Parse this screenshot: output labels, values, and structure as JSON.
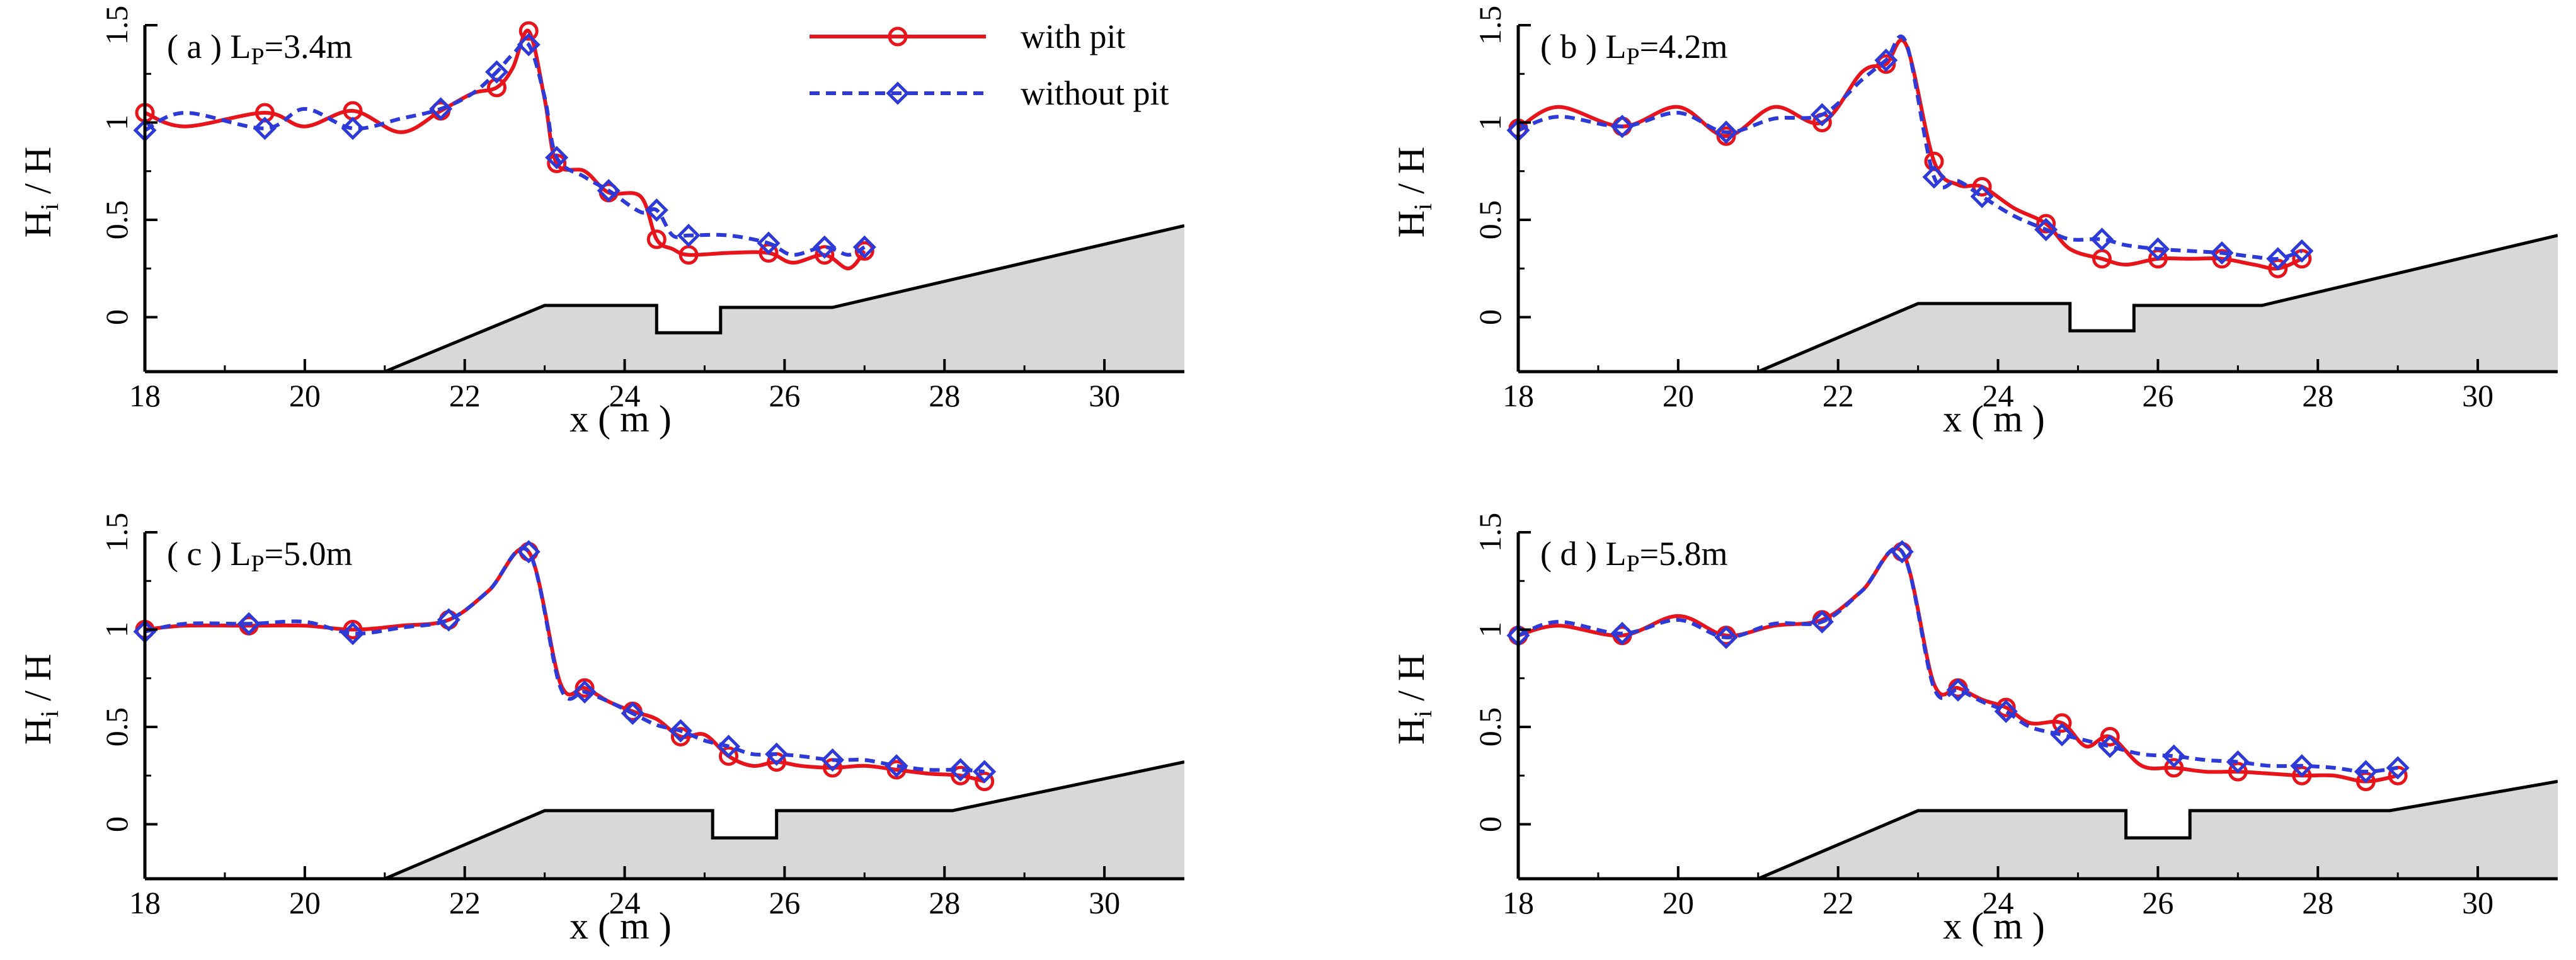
{
  "colors": {
    "with_pit": "#e8141b",
    "without_pit": "#2d3ad8",
    "seabed_fill": "#d8d8d8",
    "axis": "#000000"
  },
  "legend": [
    {
      "key": "with_pit",
      "label": "with pit",
      "style": "solid-circle"
    },
    {
      "key": "without_pit",
      "label": "without pit",
      "style": "dashed-diamond"
    }
  ],
  "shared": {
    "xlabel": "x ( m )",
    "ylabel_main": "H",
    "ylabel_sub": "i",
    "ylabel_tail": " / H",
    "xticks": [
      "18",
      "20",
      "22",
      "24",
      "26",
      "28",
      "30"
    ],
    "yticks": [
      "0",
      "0.5",
      "1",
      "1.5"
    ]
  },
  "chart_data": [
    {
      "type": "line",
      "panel": "(a)",
      "label_prefix": "( a ) L",
      "label_sub": "P",
      "label_value": "=3.4m",
      "xlim": [
        18,
        31
      ],
      "ylim": [
        -0.28,
        1.5
      ],
      "bathymetry": [
        [
          21,
          -0.28
        ],
        [
          23,
          0.06
        ],
        [
          24.4,
          0.06
        ],
        [
          24.4,
          -0.08
        ],
        [
          25.2,
          -0.08
        ],
        [
          25.2,
          0.05
        ],
        [
          26.6,
          0.05
        ],
        [
          31,
          0.47
        ]
      ],
      "series": [
        {
          "name": "with pit",
          "x": [
            18,
            18.5,
            19.5,
            20,
            20.6,
            21.2,
            21.7,
            22.1,
            22.4,
            22.6,
            22.8,
            23,
            23.15,
            23.5,
            23.8,
            24.2,
            24.4,
            24.6,
            24.8,
            25.3,
            25.8,
            26.1,
            26.5,
            26.8,
            27.0
          ],
          "y": [
            1.05,
            0.98,
            1.05,
            0.98,
            1.06,
            0.95,
            1.06,
            1.15,
            1.18,
            1.28,
            1.47,
            1.12,
            0.79,
            0.75,
            0.64,
            0.62,
            0.4,
            0.35,
            0.32,
            0.33,
            0.33,
            0.28,
            0.32,
            0.25,
            0.34
          ]
        },
        {
          "name": "without pit",
          "x": [
            18,
            18.5,
            19.5,
            20,
            20.6,
            21.2,
            21.7,
            22.1,
            22.4,
            22.6,
            22.8,
            23,
            23.15,
            23.5,
            23.8,
            24.2,
            24.4,
            24.6,
            24.8,
            25.3,
            25.8,
            26.1,
            26.5,
            26.8,
            27.0
          ],
          "y": [
            0.96,
            1.05,
            0.97,
            1.07,
            0.97,
            1.02,
            1.07,
            1.15,
            1.26,
            1.35,
            1.4,
            1.13,
            0.82,
            0.72,
            0.65,
            0.54,
            0.55,
            0.42,
            0.42,
            0.42,
            0.38,
            0.32,
            0.36,
            0.32,
            0.36
          ]
        }
      ]
    },
    {
      "type": "line",
      "panel": "(b)",
      "label_prefix": "( b ) L",
      "label_sub": "P",
      "label_value": "=4.2m",
      "xlim": [
        18,
        31
      ],
      "ylim": [
        -0.28,
        1.5
      ],
      "bathymetry": [
        [
          21,
          -0.28
        ],
        [
          23,
          0.07
        ],
        [
          24.9,
          0.07
        ],
        [
          24.9,
          -0.07
        ],
        [
          25.7,
          -0.07
        ],
        [
          25.7,
          0.06
        ],
        [
          27.3,
          0.06
        ],
        [
          31,
          0.42
        ]
      ],
      "series": [
        {
          "name": "with pit",
          "x": [
            18,
            18.5,
            19.3,
            20,
            20.6,
            21.2,
            21.8,
            22.3,
            22.6,
            22.85,
            23.2,
            23.5,
            23.8,
            24.2,
            24.6,
            24.9,
            25.3,
            25.6,
            26.0,
            26.4,
            26.8,
            27.2,
            27.5,
            27.8
          ],
          "y": [
            0.97,
            1.08,
            0.98,
            1.08,
            0.93,
            1.08,
            1.0,
            1.26,
            1.3,
            1.4,
            0.8,
            0.68,
            0.67,
            0.56,
            0.48,
            0.35,
            0.3,
            0.27,
            0.3,
            0.3,
            0.3,
            0.27,
            0.25,
            0.3
          ]
        },
        {
          "name": "without pit",
          "x": [
            18,
            18.5,
            19.3,
            20,
            20.6,
            21.2,
            21.8,
            22.3,
            22.6,
            22.85,
            23.2,
            23.5,
            23.8,
            24.2,
            24.6,
            24.9,
            25.3,
            25.6,
            26.0,
            26.4,
            26.8,
            27.2,
            27.5,
            27.8
          ],
          "y": [
            0.96,
            1.03,
            0.98,
            1.05,
            0.95,
            1.02,
            1.04,
            1.22,
            1.32,
            1.41,
            0.72,
            0.7,
            0.62,
            0.52,
            0.45,
            0.4,
            0.4,
            0.37,
            0.35,
            0.34,
            0.33,
            0.31,
            0.3,
            0.34
          ]
        }
      ]
    },
    {
      "type": "line",
      "panel": "(c)",
      "label_prefix": "( c ) L",
      "label_sub": "P",
      "label_value": "=5.0m",
      "xlim": [
        18,
        31
      ],
      "ylim": [
        -0.28,
        1.5
      ],
      "bathymetry": [
        [
          21,
          -0.28
        ],
        [
          23,
          0.07
        ],
        [
          25.1,
          0.07
        ],
        [
          25.1,
          -0.07
        ],
        [
          25.9,
          -0.07
        ],
        [
          25.9,
          0.07
        ],
        [
          28.1,
          0.07
        ],
        [
          31,
          0.32
        ]
      ],
      "series": [
        {
          "name": "with pit",
          "x": [
            18,
            18.5,
            19.3,
            20,
            20.6,
            21.2,
            21.8,
            22.3,
            22.8,
            23.2,
            23.5,
            23.8,
            24.1,
            24.4,
            24.7,
            25.0,
            25.3,
            25.6,
            25.9,
            26.2,
            26.6,
            27.0,
            27.4,
            27.8,
            28.2,
            28.5
          ],
          "y": [
            1.0,
            1.02,
            1.02,
            1.02,
            1.0,
            1.02,
            1.05,
            1.2,
            1.4,
            0.72,
            0.7,
            0.63,
            0.58,
            0.54,
            0.45,
            0.46,
            0.35,
            0.3,
            0.32,
            0.3,
            0.29,
            0.3,
            0.28,
            0.26,
            0.25,
            0.22
          ]
        },
        {
          "name": "without pit",
          "x": [
            18,
            18.5,
            19.3,
            20,
            20.6,
            21.2,
            21.8,
            22.3,
            22.8,
            23.2,
            23.5,
            23.8,
            24.1,
            24.4,
            24.7,
            25.0,
            25.3,
            25.6,
            25.9,
            26.2,
            26.6,
            27.0,
            27.4,
            27.8,
            28.2,
            28.5
          ],
          "y": [
            0.99,
            1.03,
            1.03,
            1.04,
            0.98,
            1.01,
            1.05,
            1.2,
            1.4,
            0.7,
            0.68,
            0.63,
            0.57,
            0.51,
            0.48,
            0.43,
            0.4,
            0.36,
            0.36,
            0.35,
            0.33,
            0.33,
            0.3,
            0.28,
            0.28,
            0.27
          ]
        }
      ]
    },
    {
      "type": "line",
      "panel": "(d)",
      "label_prefix": "( d ) L",
      "label_sub": "P",
      "label_value": "=5.8m",
      "xlim": [
        18,
        31
      ],
      "ylim": [
        -0.28,
        1.5
      ],
      "bathymetry": [
        [
          21,
          -0.28
        ],
        [
          23,
          0.07
        ],
        [
          25.6,
          0.07
        ],
        [
          25.6,
          -0.07
        ],
        [
          26.4,
          -0.07
        ],
        [
          26.4,
          0.07
        ],
        [
          28.9,
          0.07
        ],
        [
          31,
          0.22
        ]
      ],
      "series": [
        {
          "name": "with pit",
          "x": [
            18,
            18.5,
            19.3,
            20,
            20.6,
            21.2,
            21.8,
            22.3,
            22.8,
            23.2,
            23.5,
            23.8,
            24.1,
            24.4,
            24.8,
            25.1,
            25.4,
            25.8,
            26.2,
            26.6,
            27.0,
            27.4,
            27.8,
            28.2,
            28.6,
            29.0
          ],
          "y": [
            0.97,
            1.02,
            0.97,
            1.07,
            0.97,
            1.02,
            1.05,
            1.2,
            1.4,
            0.72,
            0.7,
            0.64,
            0.6,
            0.52,
            0.52,
            0.4,
            0.45,
            0.3,
            0.29,
            0.27,
            0.27,
            0.26,
            0.25,
            0.25,
            0.22,
            0.25
          ]
        },
        {
          "name": "without pit",
          "x": [
            18,
            18.5,
            19.3,
            20,
            20.6,
            21.2,
            21.8,
            22.3,
            22.8,
            23.2,
            23.5,
            23.8,
            24.1,
            24.4,
            24.8,
            25.1,
            25.4,
            25.8,
            26.2,
            26.6,
            27.0,
            27.4,
            27.8,
            28.2,
            28.6,
            29.0
          ],
          "y": [
            0.97,
            1.04,
            0.98,
            1.05,
            0.96,
            1.03,
            1.04,
            1.2,
            1.4,
            0.7,
            0.69,
            0.63,
            0.58,
            0.5,
            0.46,
            0.43,
            0.4,
            0.36,
            0.35,
            0.33,
            0.32,
            0.3,
            0.3,
            0.29,
            0.27,
            0.29
          ]
        }
      ]
    }
  ]
}
